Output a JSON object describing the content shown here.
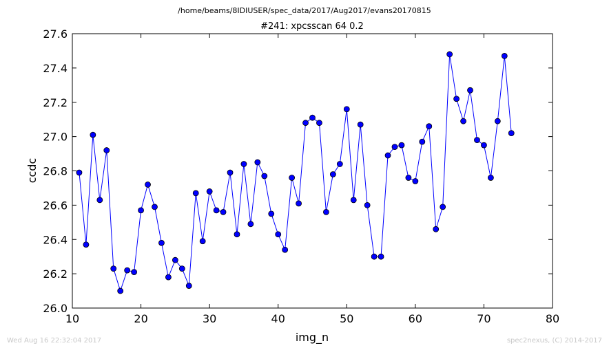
{
  "header": {
    "suptitle": "/home/beams/8IDIUSER/spec_data/2017/Aug2017/evans20170815"
  },
  "footer": {
    "timestamp": "Wed Aug 16 22:32:04 2017",
    "credit": "spec2nexus, (C) 2014-2017"
  },
  "chart_data": {
    "type": "line",
    "title": "#241: xpcsscan 64 0.2",
    "xlabel": "img_n",
    "ylabel": "ccdc",
    "xlim": [
      10,
      80
    ],
    "ylim": [
      26.0,
      27.6
    ],
    "xticks": [
      "10",
      "20",
      "30",
      "40",
      "50",
      "60",
      "70",
      "80"
    ],
    "yticks": [
      "26.0",
      "26.2",
      "26.4",
      "26.6",
      "26.8",
      "27.0",
      "27.2",
      "27.4",
      "27.6"
    ],
    "grid": false,
    "color": "#0000ff",
    "marker": "circle",
    "series": [
      {
        "x": [
          11,
          12,
          13,
          14,
          15,
          16,
          17,
          18,
          19,
          20,
          21,
          22,
          23,
          24,
          25,
          26,
          27,
          28,
          29,
          30,
          31,
          32,
          33,
          34,
          35,
          36,
          37,
          38,
          39,
          40,
          41,
          42,
          43,
          44,
          45,
          46,
          47,
          48,
          49,
          50,
          51,
          52,
          53,
          54,
          55,
          56,
          57,
          58,
          59,
          60,
          61,
          62,
          63,
          64,
          65,
          66,
          67,
          68,
          69,
          70,
          71,
          72,
          73,
          74
        ],
        "y": [
          26.79,
          26.37,
          27.01,
          26.63,
          26.92,
          26.23,
          26.1,
          26.22,
          26.21,
          26.57,
          26.72,
          26.59,
          26.38,
          26.18,
          26.28,
          26.23,
          26.13,
          26.67,
          26.39,
          26.68,
          26.57,
          26.56,
          26.79,
          26.43,
          26.84,
          26.49,
          26.85,
          26.77,
          26.55,
          26.43,
          26.34,
          26.76,
          26.61,
          27.08,
          27.11,
          27.08,
          26.56,
          26.78,
          26.84,
          27.16,
          26.63,
          27.07,
          26.6,
          26.3,
          26.3,
          26.89,
          26.94,
          26.95,
          26.76,
          26.74,
          26.97,
          27.06,
          26.46,
          26.59,
          27.48,
          27.22,
          27.09,
          27.27,
          26.98,
          26.95,
          26.76,
          27.09,
          27.47,
          27.02
        ]
      }
    ]
  }
}
